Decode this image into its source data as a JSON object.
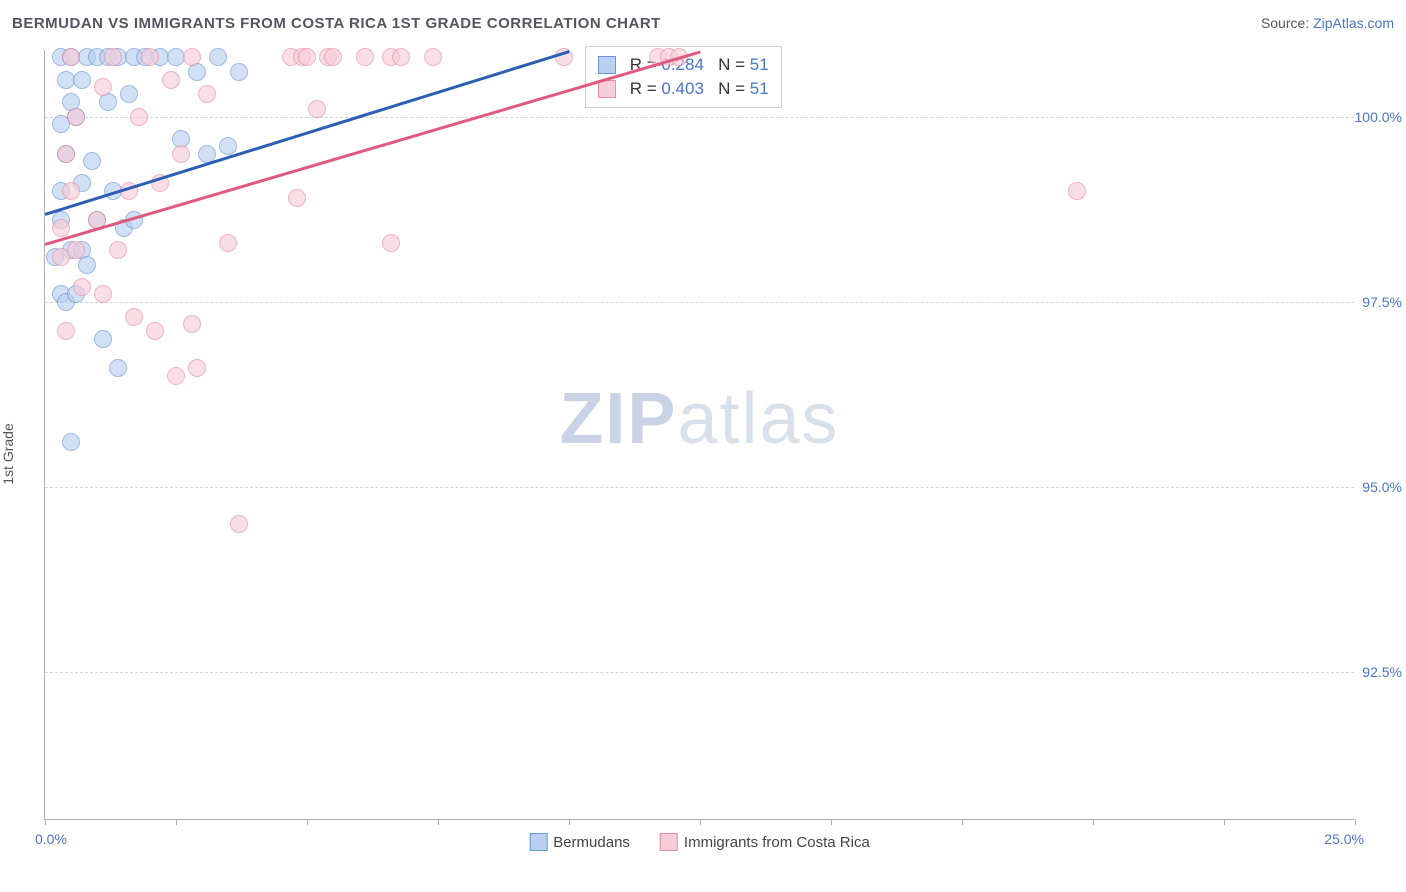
{
  "title": "BERMUDAN VS IMMIGRANTS FROM COSTA RICA 1ST GRADE CORRELATION CHART",
  "source_prefix": "Source: ",
  "source_link": "ZipAtlas.com",
  "y_axis_label": "1st Grade",
  "watermark_zip": "ZIP",
  "watermark_atlas": "atlas",
  "chart": {
    "type": "scatter",
    "xlim": [
      0,
      25
    ],
    "ylim": [
      90.5,
      100.9
    ],
    "x_ticks_minor": [
      0,
      2.5,
      5,
      7.5,
      10,
      12.5,
      15,
      17.5,
      20,
      22.5,
      25
    ],
    "x_tick_labels": {
      "0": "0.0%",
      "25": "25.0%"
    },
    "y_gridlines": [
      92.5,
      95.0,
      97.5,
      100.0
    ],
    "y_tick_labels": {
      "92.5": "92.5%",
      "95.0": "95.0%",
      "97.5": "97.5%",
      "100.0": "100.0%"
    },
    "background_color": "#ffffff",
    "grid_color": "#d5d5d5",
    "font_family": "Arial",
    "title_fontsize": 15,
    "tick_fontsize": 14,
    "tick_color": "#4a74c9"
  },
  "series": [
    {
      "name": "Bermudans",
      "fill_color": "#b9d0f0",
      "stroke_color": "#6a96d8",
      "line_color": "#2c5fb3",
      "R": "0.284",
      "N": "51",
      "trend": {
        "x1": 0,
        "y1": 98.7,
        "x2": 10.0,
        "y2": 100.9
      },
      "points": [
        [
          0.3,
          100.8
        ],
        [
          0.5,
          100.8
        ],
        [
          0.8,
          100.8
        ],
        [
          1.0,
          100.8
        ],
        [
          1.2,
          100.8
        ],
        [
          1.4,
          100.8
        ],
        [
          1.7,
          100.8
        ],
        [
          1.9,
          100.8
        ],
        [
          2.2,
          100.8
        ],
        [
          2.5,
          100.8
        ],
        [
          3.3,
          100.8
        ],
        [
          0.4,
          100.5
        ],
        [
          0.7,
          100.5
        ],
        [
          2.9,
          100.6
        ],
        [
          3.7,
          100.6
        ],
        [
          0.5,
          100.2
        ],
        [
          1.2,
          100.2
        ],
        [
          1.6,
          100.3
        ],
        [
          0.3,
          99.9
        ],
        [
          0.6,
          100.0
        ],
        [
          2.6,
          99.7
        ],
        [
          0.4,
          99.5
        ],
        [
          0.9,
          99.4
        ],
        [
          3.1,
          99.5
        ],
        [
          3.5,
          99.6
        ],
        [
          0.3,
          99.0
        ],
        [
          0.7,
          99.1
        ],
        [
          1.3,
          99.0
        ],
        [
          0.3,
          98.6
        ],
        [
          1.0,
          98.6
        ],
        [
          1.5,
          98.5
        ],
        [
          1.7,
          98.6
        ],
        [
          0.2,
          98.1
        ],
        [
          0.5,
          98.2
        ],
        [
          0.7,
          98.2
        ],
        [
          0.8,
          98.0
        ],
        [
          0.3,
          97.6
        ],
        [
          0.4,
          97.5
        ],
        [
          0.6,
          97.6
        ],
        [
          1.1,
          97.0
        ],
        [
          1.4,
          96.6
        ],
        [
          0.5,
          95.6
        ]
      ]
    },
    {
      "name": "Immigrants from Costa Rica",
      "fill_color": "#f6cdd8",
      "stroke_color": "#e88da3",
      "line_color": "#e05a7f",
      "R": "0.403",
      "N": "51",
      "trend": {
        "x1": 0,
        "y1": 98.3,
        "x2": 12.5,
        "y2": 100.9
      },
      "points": [
        [
          0.5,
          100.8
        ],
        [
          1.3,
          100.8
        ],
        [
          2.0,
          100.8
        ],
        [
          2.8,
          100.8
        ],
        [
          4.7,
          100.8
        ],
        [
          4.9,
          100.8
        ],
        [
          5.0,
          100.8
        ],
        [
          5.4,
          100.8
        ],
        [
          5.5,
          100.8
        ],
        [
          6.1,
          100.8
        ],
        [
          6.6,
          100.8
        ],
        [
          6.8,
          100.8
        ],
        [
          7.4,
          100.8
        ],
        [
          9.9,
          100.8
        ],
        [
          11.7,
          100.8
        ],
        [
          11.9,
          100.8
        ],
        [
          12.1,
          100.8
        ],
        [
          1.1,
          100.4
        ],
        [
          2.4,
          100.5
        ],
        [
          3.1,
          100.3
        ],
        [
          0.6,
          100.0
        ],
        [
          1.8,
          100.0
        ],
        [
          5.2,
          100.1
        ],
        [
          0.4,
          99.5
        ],
        [
          2.6,
          99.5
        ],
        [
          0.5,
          99.0
        ],
        [
          1.6,
          99.0
        ],
        [
          2.2,
          99.1
        ],
        [
          4.8,
          98.9
        ],
        [
          0.3,
          98.5
        ],
        [
          1.0,
          98.6
        ],
        [
          19.7,
          99.0
        ],
        [
          0.3,
          98.1
        ],
        [
          0.6,
          98.2
        ],
        [
          1.4,
          98.2
        ],
        [
          3.5,
          98.3
        ],
        [
          6.6,
          98.3
        ],
        [
          0.7,
          97.7
        ],
        [
          1.1,
          97.6
        ],
        [
          0.4,
          97.1
        ],
        [
          2.1,
          97.1
        ],
        [
          1.7,
          97.3
        ],
        [
          2.8,
          97.2
        ],
        [
          2.5,
          96.5
        ],
        [
          2.9,
          96.6
        ],
        [
          3.7,
          94.5
        ]
      ]
    }
  ],
  "r_box": {
    "r_label": "R = ",
    "n_label": "N = "
  },
  "legend_bottom": [
    {
      "label": "Bermudans",
      "series": 0
    },
    {
      "label": "Immigrants from Costa Rica",
      "series": 1
    }
  ]
}
